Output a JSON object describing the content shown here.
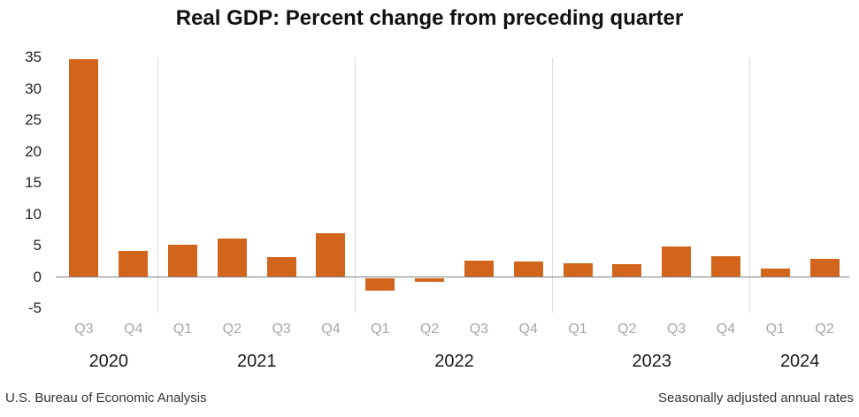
{
  "title": "Real GDP: Percent change from preceding quarter",
  "footer": {
    "left": "U.S. Bureau of Economic Analysis",
    "right": "Seasonally adjusted annual rates"
  },
  "colors": {
    "bar": "#d2651c",
    "zero_axis": "#7f7f7f",
    "year_separator": "#dcdcdc",
    "quarter_label": "#a6a6a6",
    "year_label": "#1a1a1a",
    "axis_text": "#262626"
  },
  "chart_data": {
    "type": "bar",
    "title": "Real GDP: Percent change from preceding quarter",
    "xlabel": "",
    "ylabel": "",
    "ylim": [
      -5,
      35
    ],
    "y_ticks": [
      35,
      30,
      25,
      20,
      15,
      10,
      5,
      0,
      -5
    ],
    "grid": "none",
    "legend": "none",
    "categories": [
      "Q3",
      "Q4",
      "Q1",
      "Q2",
      "Q3",
      "Q4",
      "Q1",
      "Q2",
      "Q3",
      "Q4",
      "Q1",
      "Q2",
      "Q3",
      "Q4",
      "Q1",
      "Q2"
    ],
    "values": [
      34.8,
      4.2,
      5.2,
      6.2,
      3.3,
      7.0,
      -2.0,
      -0.6,
      2.7,
      2.6,
      2.2,
      2.1,
      4.9,
      3.4,
      1.4,
      3.0
    ],
    "year_groups": [
      {
        "year": "2020",
        "quarters": [
          "Q3",
          "Q4"
        ],
        "values": [
          34.8,
          4.2
        ]
      },
      {
        "year": "2021",
        "quarters": [
          "Q1",
          "Q2",
          "Q3",
          "Q4"
        ],
        "values": [
          5.2,
          6.2,
          3.3,
          7.0
        ]
      },
      {
        "year": "2022",
        "quarters": [
          "Q1",
          "Q2",
          "Q3",
          "Q4"
        ],
        "values": [
          -2.0,
          -0.6,
          2.7,
          2.6
        ]
      },
      {
        "year": "2023",
        "quarters": [
          "Q1",
          "Q2",
          "Q3",
          "Q4"
        ],
        "values": [
          2.2,
          2.1,
          4.9,
          3.4
        ]
      },
      {
        "year": "2024",
        "quarters": [
          "Q1",
          "Q2"
        ],
        "values": [
          1.4,
          3.0
        ]
      }
    ]
  }
}
